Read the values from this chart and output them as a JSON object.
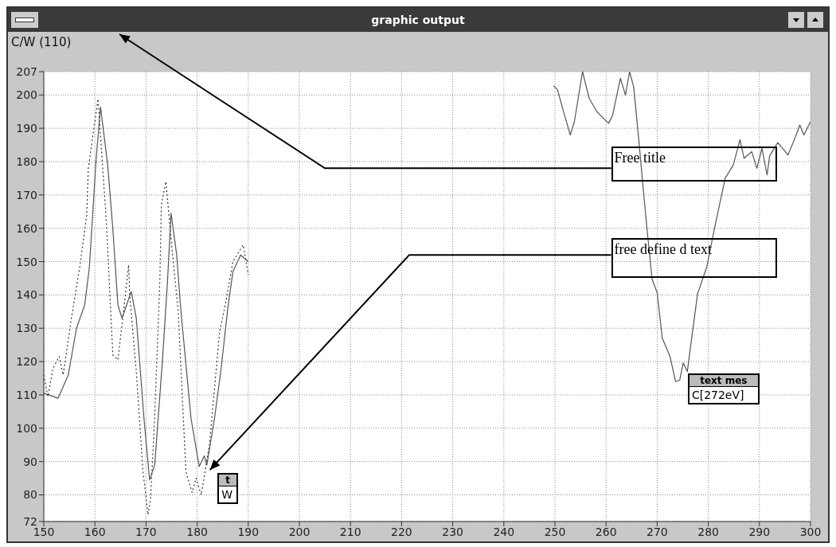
{
  "chart_data": {
    "type": "line",
    "title": "graphic output",
    "ylabel": "C/W (110)",
    "xlim": [
      150,
      300
    ],
    "xticks": [
      150,
      160,
      170,
      180,
      190,
      200,
      210,
      220,
      230,
      240,
      250,
      260,
      270,
      280,
      290,
      300
    ],
    "ylim": [
      72,
      207
    ],
    "yticks": [
      72,
      80,
      90,
      100,
      110,
      120,
      130,
      140,
      150,
      160,
      170,
      180,
      190,
      200,
      207
    ],
    "grid": true,
    "legend": false,
    "marker": "none",
    "series": [
      {
        "color": "#555555",
        "line_style": "solid",
        "x": [
          150,
          152.8,
          154.8,
          156.4,
          158,
          158.9,
          159.4,
          160.2,
          161.1,
          162.5,
          163.5,
          164.5,
          165.3,
          167.1,
          168.1,
          169.6,
          170.7,
          171.7,
          173.2,
          174.2,
          174.9,
          176,
          176.8,
          178.8,
          180.4,
          181.4,
          181.9,
          183.4,
          184.7,
          186,
          187,
          188.5,
          190,
          220,
          249.7,
          250.5,
          251.5,
          253,
          253.8,
          255.4,
          256.7,
          258.2,
          259.5,
          260.5,
          261.3,
          262.8,
          263.8,
          264.6,
          265.4,
          266.4,
          267.2,
          268,
          269,
          270,
          271,
          272.5,
          273.6,
          274.4,
          275.1,
          275.9,
          276.7,
          277.9,
          279.7,
          281.3,
          283.3,
          284.9,
          286.2,
          287,
          288.5,
          289.5,
          290.5,
          291.5,
          292,
          293.6,
          295.6,
          297.1,
          297.9,
          298.7,
          300
        ],
        "values": [
          110.5,
          109,
          116,
          130,
          137,
          148,
          160,
          180,
          196.4,
          179,
          160,
          137,
          133,
          141,
          133,
          103,
          84.5,
          89,
          120,
          144,
          164.5,
          152,
          135.6,
          103,
          88.5,
          91.7,
          89,
          103,
          118,
          136,
          147,
          152,
          150,
          null,
          202.8,
          201.6,
          196,
          188,
          192,
          207,
          199,
          195,
          193,
          191.5,
          194,
          205,
          200,
          207,
          202.5,
          186.6,
          173,
          160,
          144.7,
          140.7,
          127,
          121.6,
          114,
          114.4,
          119.6,
          117,
          126.5,
          140.3,
          148.4,
          160.6,
          175,
          179,
          186.6,
          181,
          183,
          178,
          184,
          176,
          181.7,
          185.7,
          182,
          187.6,
          191,
          188,
          192
        ]
      },
      {
        "color": "#333333",
        "line_style": "dotted",
        "x": [
          150,
          150.8,
          151.8,
          153,
          153.8,
          155.4,
          157,
          158.4,
          158.7,
          160.6,
          162.2,
          163.5,
          164.5,
          165.6,
          166.6,
          166.8,
          168.1,
          169.4,
          170.4,
          170.9,
          171.7,
          172.7,
          173,
          173.9,
          175,
          176.3,
          177.8,
          179,
          179.8,
          180.8,
          182.4,
          184.4,
          185.5,
          187,
          189,
          189.8,
          190
        ],
        "values": [
          116,
          109.5,
          118,
          121.5,
          116,
          133,
          148,
          164,
          177.8,
          198.8,
          163,
          122,
          120.5,
          135,
          149,
          140,
          117,
          87,
          74,
          79,
          103.5,
          144,
          167,
          174,
          155,
          135,
          87,
          80.7,
          85,
          80,
          95,
          129,
          137,
          150,
          155,
          148,
          146
        ]
      }
    ],
    "annotations": [
      "Free title",
      "free define d text",
      "t",
      "W",
      "text mes",
      "C[272eV]"
    ]
  }
}
